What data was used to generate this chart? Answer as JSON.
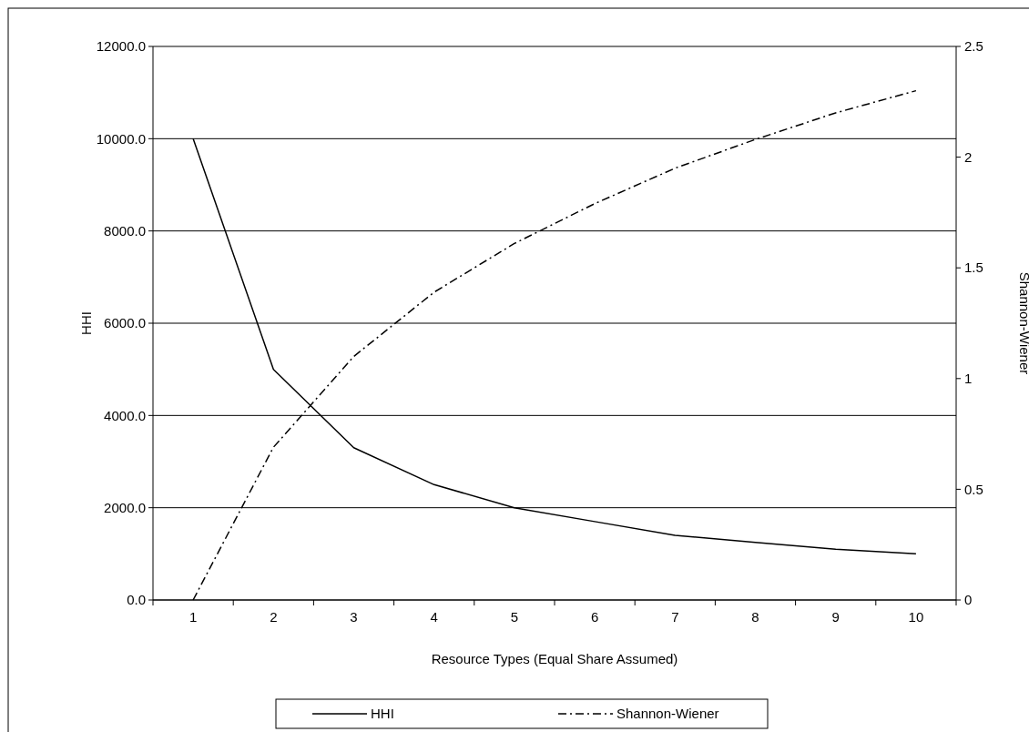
{
  "chart_data": {
    "type": "line",
    "xlabel": "Resource Types (Equal Share Assumed)",
    "ylabel": "HHI",
    "y2label": "Shannon-Wiener",
    "categories": [
      "1",
      "2",
      "3",
      "4",
      "5",
      "6",
      "7",
      "8",
      "9",
      "10"
    ],
    "series": [
      {
        "name": "HHI",
        "color": "#000000",
        "line_style": "solid",
        "values": [
          10000,
          5000,
          3300,
          2500,
          2000,
          1700,
          1400,
          1250,
          1100,
          1000
        ]
      },
      {
        "name": "Shannon-Wiener",
        "color": "#000000",
        "line_style": "dashed",
        "axis": "y2",
        "values": [
          0,
          0.69,
          1.1,
          1.39,
          1.61,
          1.79,
          1.95,
          2.08,
          2.2,
          2.3
        ]
      }
    ],
    "ylim": [
      0,
      12000
    ],
    "yticks": [
      {
        "value": 0,
        "label": "0.0"
      },
      {
        "value": 2000,
        "label": "2000.0"
      },
      {
        "value": 4000,
        "label": "4000.0"
      },
      {
        "value": 6000,
        "label": "6000.0"
      },
      {
        "value": 8000,
        "label": "8000.0"
      },
      {
        "value": 10000,
        "label": "10000.0"
      },
      {
        "value": 12000,
        "label": "12000.0"
      }
    ],
    "y2lim": [
      0,
      2.5
    ],
    "y2ticks": [
      0,
      0.5,
      1,
      1.5,
      2,
      2.5
    ],
    "grid": "y",
    "legend": "bottom"
  }
}
